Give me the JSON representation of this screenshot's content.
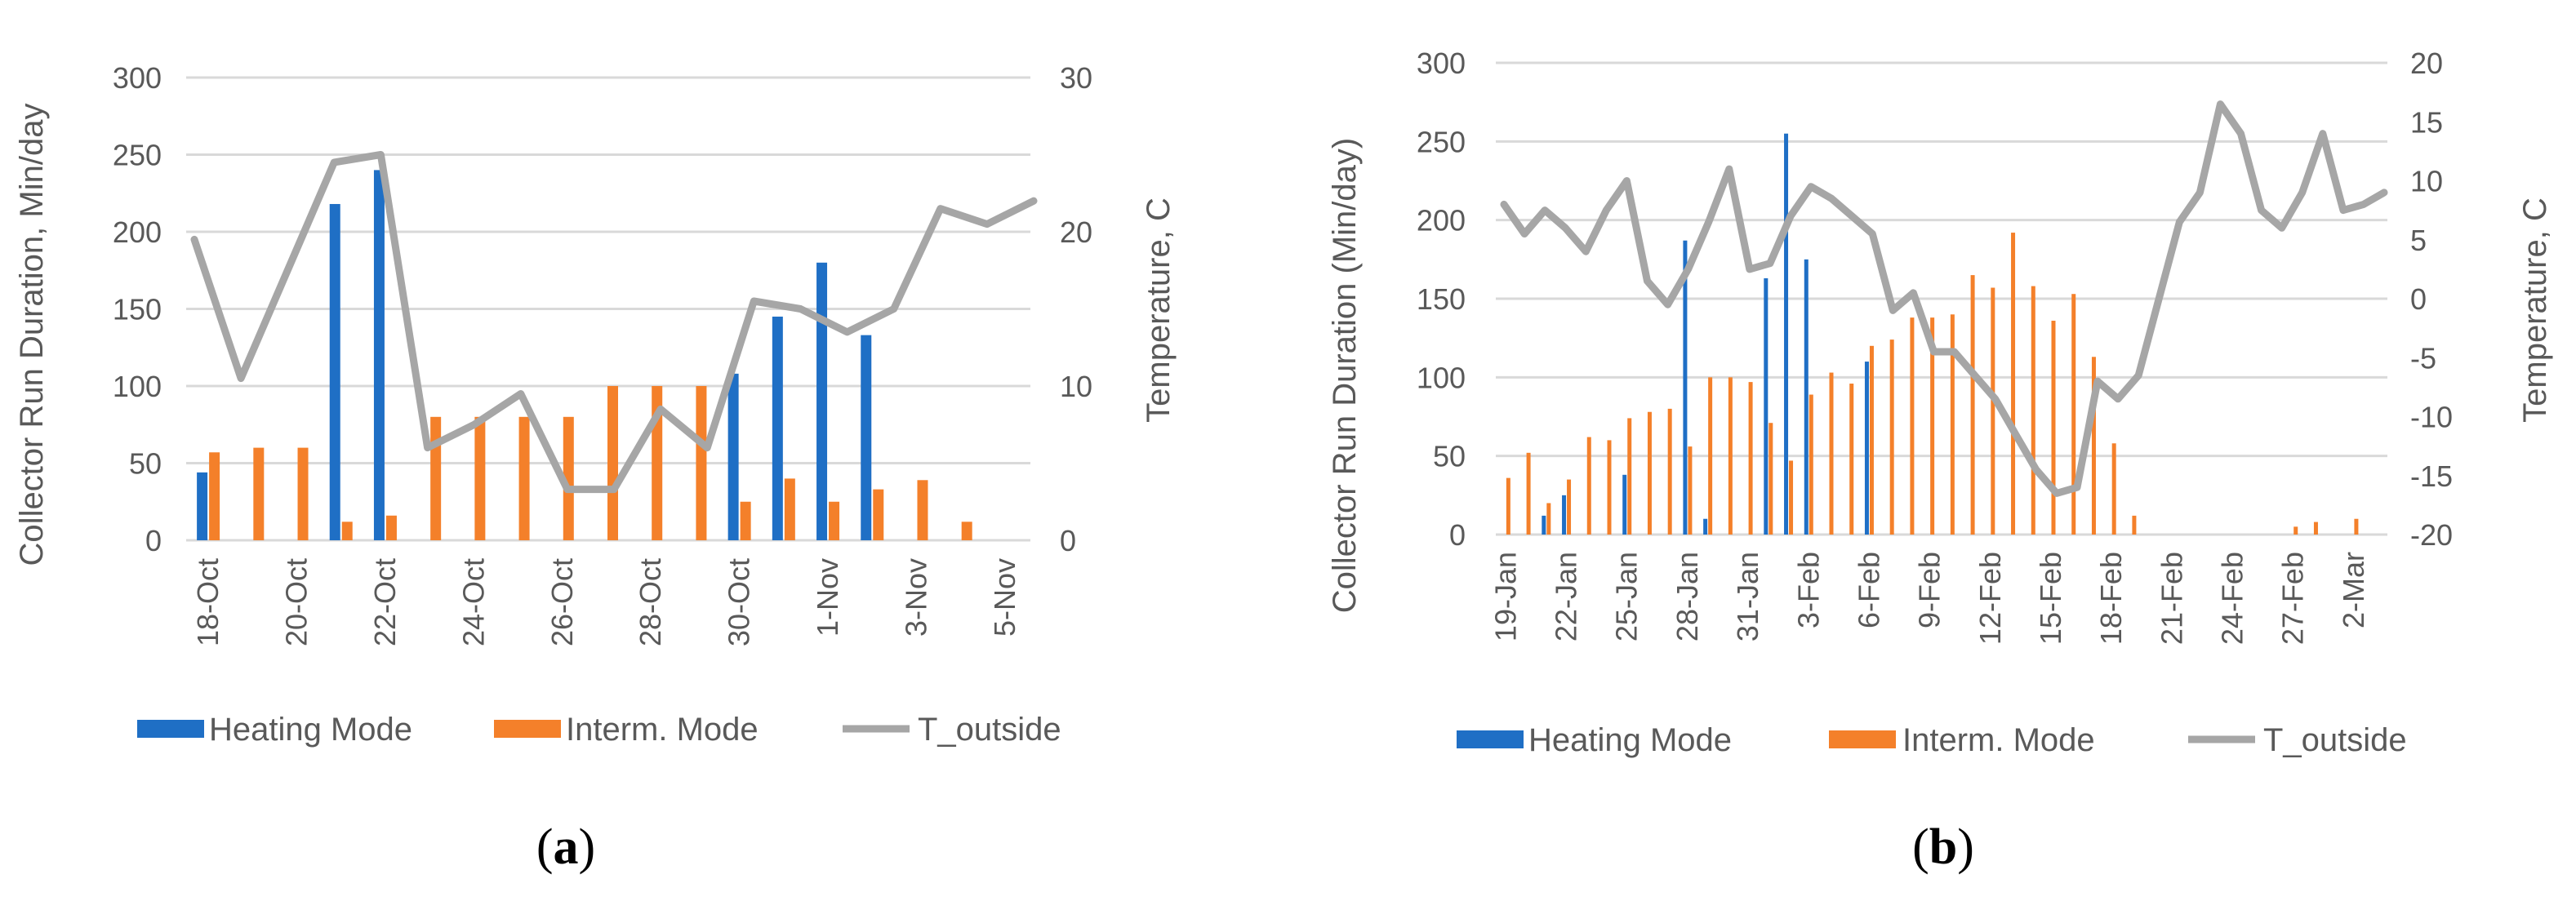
{
  "colors": {
    "heating": "#1f6fc5",
    "interm": "#f4802a",
    "outside": "#a6a6a6",
    "grid": "#d9d9d9",
    "text": "#595959"
  },
  "legend": {
    "heating": "Heating Mode",
    "interm": "Interm. Mode",
    "outside": "T_outside"
  },
  "chart_data": [
    {
      "type": "bar+line",
      "caption_letter": "a",
      "ylabel": "Collector Run Duration, Min/day",
      "y2label": "Temperature, C",
      "ylim": [
        0,
        300
      ],
      "y2lim": [
        0,
        30
      ],
      "yticks": [
        0,
        50,
        100,
        150,
        200,
        250,
        300
      ],
      "y2ticks": [
        0,
        10,
        20,
        30
      ],
      "categories": [
        "18-Oct",
        "19-Oct",
        "20-Oct",
        "21-Oct",
        "22-Oct",
        "23-Oct",
        "24-Oct",
        "25-Oct",
        "26-Oct",
        "27-Oct",
        "28-Oct",
        "29-Oct",
        "30-Oct",
        "31-Oct",
        "1-Nov",
        "2-Nov",
        "3-Nov",
        "4-Nov",
        "5-Nov"
      ],
      "tick_labels": [
        "18-Oct",
        "20-Oct",
        "22-Oct",
        "24-Oct",
        "26-Oct",
        "28-Oct",
        "30-Oct",
        "1-Nov",
        "3-Nov",
        "5-Nov"
      ],
      "series": [
        {
          "name": "Heating Mode",
          "axis": "left",
          "kind": "bar",
          "values": [
            44,
            0,
            0,
            218,
            240,
            0,
            0,
            0,
            0,
            0,
            0,
            0,
            108,
            145,
            180,
            133,
            0,
            0,
            0
          ]
        },
        {
          "name": "Interm. Mode",
          "axis": "left",
          "kind": "bar",
          "values": [
            57,
            60,
            60,
            12,
            16,
            80,
            80,
            80,
            80,
            100,
            100,
            100,
            25,
            40,
            25,
            33,
            39,
            12,
            0
          ]
        },
        {
          "name": "T_outside",
          "axis": "right",
          "kind": "line",
          "values": [
            19.5,
            10.5,
            17.5,
            24.5,
            25.0,
            6.0,
            7.5,
            9.5,
            3.3,
            3.3,
            8.5,
            6.0,
            15.5,
            15.0,
            13.5,
            15.0,
            21.5,
            20.5,
            22.0
          ]
        }
      ]
    },
    {
      "type": "bar+line",
      "caption_letter": "b",
      "ylabel": "Collector Run Duration (Min/day)",
      "y2label": "Temperature, C",
      "ylim": [
        0,
        300
      ],
      "y2lim": [
        -20,
        20
      ],
      "yticks": [
        0,
        50,
        100,
        150,
        200,
        250,
        300
      ],
      "y2ticks": [
        -20,
        -15,
        -10,
        -5,
        0,
        5,
        10,
        15,
        20
      ],
      "categories": [
        "19-Jan",
        "20-Jan",
        "21-Jan",
        "22-Jan",
        "23-Jan",
        "24-Jan",
        "25-Jan",
        "26-Jan",
        "27-Jan",
        "28-Jan",
        "29-Jan",
        "30-Jan",
        "31-Jan",
        "1-Feb",
        "2-Feb",
        "3-Feb",
        "4-Feb",
        "5-Feb",
        "6-Feb",
        "7-Feb",
        "8-Feb",
        "9-Feb",
        "10-Feb",
        "11-Feb",
        "12-Feb",
        "13-Feb",
        "14-Feb",
        "15-Feb",
        "16-Feb",
        "17-Feb",
        "18-Feb",
        "19-Feb",
        "20-Feb",
        "21-Feb",
        "22-Feb",
        "23-Feb",
        "24-Feb",
        "25-Feb",
        "26-Feb",
        "27-Feb",
        "28-Feb",
        "1-Mar",
        "2-Mar",
        "3-Mar"
      ],
      "tick_labels": [
        "19-Jan",
        "22-Jan",
        "25-Jan",
        "28-Jan",
        "31-Jan",
        "3-Feb",
        "6-Feb",
        "9-Feb",
        "12-Feb",
        "15-Feb",
        "18-Feb",
        "21-Feb",
        "24-Feb",
        "27-Feb",
        "2-Mar"
      ],
      "series": [
        {
          "name": "Heating Mode",
          "axis": "left",
          "kind": "bar",
          "values": [
            0,
            0,
            12,
            25,
            0,
            0,
            38,
            0,
            0,
            187,
            10,
            0,
            0,
            163,
            255,
            175,
            0,
            0,
            110,
            0,
            0,
            0,
            0,
            0,
            0,
            0,
            0,
            0,
            0,
            0,
            0,
            0,
            0,
            0,
            0,
            0,
            0,
            0,
            0,
            0,
            0,
            0,
            0,
            0
          ]
        },
        {
          "name": "Interm. Mode",
          "axis": "left",
          "kind": "bar",
          "values": [
            36,
            52,
            20,
            35,
            62,
            60,
            74,
            78,
            80,
            56,
            100,
            100,
            97,
            71,
            47,
            89,
            103,
            96,
            120,
            124,
            138,
            138,
            140,
            165,
            157,
            192,
            158,
            136,
            153,
            113,
            58,
            12,
            0,
            0,
            0,
            0,
            0,
            0,
            0,
            5,
            8,
            0,
            10,
            0
          ]
        },
        {
          "name": "T_outside",
          "axis": "right",
          "kind": "line",
          "values": [
            8,
            5.5,
            7.5,
            6,
            4,
            7.5,
            10,
            1.5,
            -0.5,
            2.5,
            6.5,
            11,
            2.5,
            3,
            7,
            9.5,
            8.5,
            7,
            5.5,
            -1,
            0.5,
            -4.5,
            -4.5,
            -6.5,
            -8.5,
            -11.5,
            -14.5,
            -16.5,
            -16,
            -7,
            -8.5,
            -6.5,
            0,
            6.5,
            9,
            16.5,
            14,
            7.5,
            6,
            9,
            14,
            7.5,
            8,
            9
          ]
        }
      ]
    }
  ]
}
